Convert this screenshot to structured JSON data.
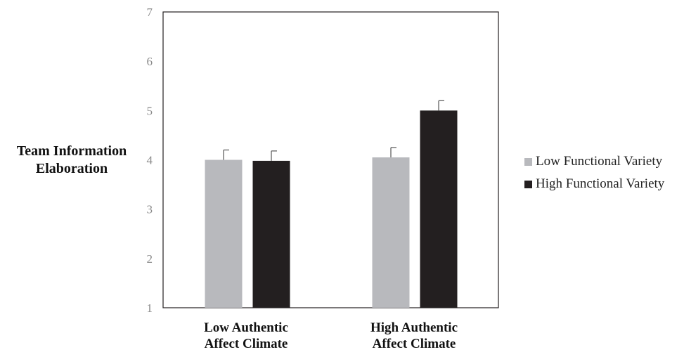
{
  "chart_data": {
    "type": "bar",
    "title": "",
    "ylabel": "Team Information Elaboration",
    "xlabel": "",
    "categories": [
      "Low Authentic Affect Climate",
      "High Authentic Affect Climate"
    ],
    "category_lines": [
      [
        "Low Authentic",
        "Affect Climate"
      ],
      [
        "High Authentic",
        "Affect Climate"
      ]
    ],
    "ylim": [
      1,
      7
    ],
    "yticks": [
      "1",
      "2",
      "3",
      "4",
      "5",
      "6",
      "7"
    ],
    "series": [
      {
        "name": "Low Functional Variety",
        "values": [
          4.0,
          4.05
        ],
        "error": [
          0.2,
          0.2
        ],
        "color": "#b8b9bd"
      },
      {
        "name": "High Functional Variety",
        "values": [
          3.98,
          5.0
        ],
        "error": [
          0.2,
          0.2
        ],
        "color": "#231f20"
      }
    ],
    "grid": false,
    "legend_position": "right"
  }
}
